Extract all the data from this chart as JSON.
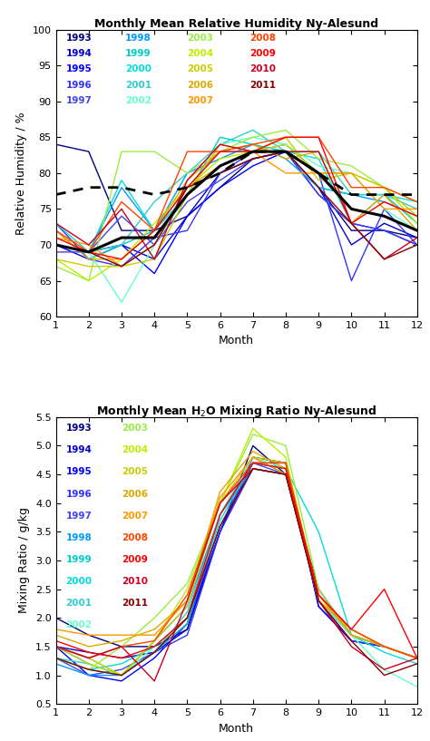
{
  "title1": "Monthly Mean Relative Humidity Ny-Alesund",
  "title2": "Monthly Mean H₂O Mixing Ratio Ny-Alesund",
  "xlabel": "Month",
  "ylabel1": "Relative Humidity / %",
  "ylabel2": "Mixing Ratio / g/kg",
  "months": [
    1,
    2,
    3,
    4,
    5,
    6,
    7,
    8,
    9,
    10,
    11,
    12
  ],
  "rh_ylim": [
    60,
    100
  ],
  "mr_ylim": [
    0.5,
    5.5
  ],
  "rh_yticks": [
    60,
    65,
    70,
    75,
    80,
    85,
    90,
    95,
    100
  ],
  "mr_yticks": [
    0.5,
    1.0,
    1.5,
    2.0,
    2.5,
    3.0,
    3.5,
    4.0,
    4.5,
    5.0,
    5.5
  ],
  "year_colors": {
    "1993": "#000080",
    "1994": "#0000CC",
    "1995": "#0000FF",
    "1996": "#3333FF",
    "1997": "#4444EE",
    "1998": "#0099FF",
    "1999": "#00CCCC",
    "2000": "#00DDDD",
    "2001": "#33CCCC",
    "2002": "#66FFCC",
    "2003": "#99EE44",
    "2004": "#BBEE00",
    "2005": "#CCCC00",
    "2006": "#DDAA00",
    "2007": "#FF9900",
    "2008": "#FF4400",
    "2009": "#FF0000",
    "2010": "#CC0022",
    "2011": "#880000"
  },
  "rh_data": {
    "1993": [
      84,
      83,
      72,
      72,
      74,
      78,
      82,
      83,
      78,
      72,
      72,
      71
    ],
    "1994": [
      70,
      69,
      70,
      68,
      74,
      80,
      82,
      83,
      78,
      70,
      73,
      71
    ],
    "1995": [
      70,
      68,
      70,
      66,
      74,
      78,
      81,
      83,
      77,
      73,
      72,
      70
    ],
    "1996": [
      73,
      68,
      67,
      71,
      72,
      80,
      83,
      84,
      80,
      65,
      75,
      70
    ],
    "1997": [
      69,
      69,
      74,
      70,
      76,
      79,
      82,
      83,
      77,
      73,
      72,
      70
    ],
    "1998": [
      70,
      69,
      78,
      72,
      80,
      82,
      84,
      82,
      78,
      77,
      76,
      74
    ],
    "1999": [
      72,
      68,
      70,
      72,
      77,
      85,
      84,
      83,
      78,
      77,
      77,
      73
    ],
    "2000": [
      73,
      69,
      79,
      72,
      78,
      83,
      83,
      83,
      82,
      73,
      77,
      76
    ],
    "2001": [
      70,
      69,
      70,
      76,
      80,
      84,
      86,
      83,
      83,
      77,
      77,
      75
    ],
    "2002": [
      70,
      69,
      62,
      70,
      77,
      84,
      85,
      84,
      81,
      80,
      75,
      72
    ],
    "2003": [
      67,
      65,
      83,
      83,
      80,
      83,
      85,
      86,
      82,
      81,
      78,
      76
    ],
    "2004": [
      68,
      65,
      68,
      73,
      78,
      82,
      83,
      84,
      80,
      80,
      78,
      73
    ],
    "2005": [
      68,
      67,
      67,
      68,
      77,
      84,
      83,
      85,
      79,
      80,
      78,
      74
    ],
    "2006": [
      72,
      68,
      68,
      72,
      79,
      83,
      84,
      82,
      83,
      73,
      77,
      72
    ],
    "2007": [
      71,
      70,
      67,
      70,
      78,
      81,
      83,
      80,
      80,
      80,
      75,
      75
    ],
    "2008": [
      72,
      69,
      76,
      72,
      83,
      83,
      84,
      85,
      85,
      78,
      78,
      76
    ],
    "2009": [
      71,
      69,
      68,
      72,
      78,
      83,
      83,
      85,
      85,
      73,
      76,
      74
    ],
    "2010": [
      73,
      70,
      75,
      68,
      79,
      84,
      83,
      83,
      83,
      73,
      68,
      71
    ],
    "2011": [
      70,
      69,
      67,
      70,
      78,
      80,
      82,
      83,
      78,
      73,
      68,
      70
    ]
  },
  "mr_data": {
    "1993": [
      2.0,
      1.7,
      1.5,
      1.5,
      1.8,
      3.5,
      5.0,
      4.5,
      2.5,
      1.7,
      1.5,
      1.3
    ],
    "1994": [
      1.5,
      1.4,
      1.3,
      1.4,
      1.8,
      3.5,
      4.8,
      4.7,
      2.2,
      1.6,
      1.5,
      1.3
    ],
    "1995": [
      1.5,
      1.0,
      0.9,
      1.3,
      1.9,
      3.5,
      4.7,
      4.7,
      2.2,
      1.6,
      1.5,
      1.3
    ],
    "1996": [
      1.5,
      1.2,
      1.0,
      1.4,
      1.7,
      3.5,
      4.6,
      4.5,
      2.3,
      1.6,
      1.5,
      1.3
    ],
    "1997": [
      1.3,
      1.0,
      1.1,
      1.4,
      1.9,
      3.6,
      4.7,
      4.5,
      2.3,
      1.7,
      1.5,
      1.3
    ],
    "1998": [
      1.2,
      1.0,
      1.0,
      1.6,
      2.2,
      3.8,
      4.6,
      4.5,
      2.3,
      1.8,
      1.5,
      1.3
    ],
    "1999": [
      1.3,
      1.1,
      1.0,
      1.4,
      1.9,
      3.8,
      4.7,
      4.6,
      2.3,
      1.7,
      1.5,
      1.3
    ],
    "2000": [
      1.3,
      1.1,
      1.2,
      1.5,
      2.0,
      3.7,
      4.7,
      4.6,
      3.5,
      1.7,
      1.4,
      1.2
    ],
    "2001": [
      1.3,
      1.2,
      1.0,
      1.4,
      2.1,
      3.8,
      4.8,
      4.5,
      2.3,
      1.7,
      1.5,
      1.3
    ],
    "2002": [
      1.5,
      1.3,
      1.0,
      1.5,
      2.0,
      3.8,
      4.8,
      4.6,
      2.3,
      1.7,
      1.1,
      0.8
    ],
    "2003": [
      1.3,
      1.1,
      1.5,
      2.0,
      2.6,
      4.0,
      5.2,
      5.0,
      2.5,
      1.7,
      1.5,
      1.3
    ],
    "2004": [
      1.5,
      1.2,
      1.0,
      1.6,
      2.5,
      4.0,
      5.3,
      4.8,
      2.3,
      1.8,
      1.5,
      1.3
    ],
    "2005": [
      1.5,
      1.3,
      1.0,
      1.6,
      2.2,
      4.0,
      4.8,
      4.7,
      2.4,
      1.7,
      1.5,
      1.3
    ],
    "2006": [
      1.7,
      1.5,
      1.6,
      1.8,
      2.3,
      4.2,
      4.9,
      4.6,
      2.4,
      1.7,
      1.5,
      1.3
    ],
    "2007": [
      1.8,
      1.7,
      1.7,
      1.7,
      2.3,
      4.1,
      4.8,
      4.5,
      2.3,
      1.8,
      1.5,
      1.3
    ],
    "2008": [
      1.5,
      1.3,
      1.5,
      1.6,
      2.4,
      4.0,
      4.7,
      4.7,
      2.4,
      1.8,
      1.5,
      1.3
    ],
    "2009": [
      1.6,
      1.4,
      1.3,
      1.5,
      2.0,
      3.8,
      4.7,
      4.6,
      2.4,
      1.8,
      2.5,
      1.3
    ],
    "2010": [
      1.5,
      1.3,
      1.5,
      0.9,
      2.3,
      4.0,
      4.6,
      4.5,
      2.3,
      1.5,
      1.1,
      1.3
    ],
    "2011": [
      1.3,
      1.1,
      1.0,
      1.4,
      2.0,
      3.6,
      4.6,
      4.5,
      2.3,
      1.6,
      1.0,
      1.2
    ]
  },
  "rh_mean": [
    70,
    69,
    71,
    71,
    77,
    81,
    83,
    83,
    80,
    75,
    74,
    72
  ],
  "rh_median": [
    77,
    78,
    78,
    77,
    78,
    80,
    83,
    83,
    80,
    77,
    77,
    77
  ],
  "legend1_cols": [
    [
      [
        "1993",
        "#000080"
      ],
      [
        "1994",
        "#0000CC"
      ],
      [
        "1995",
        "#0000FF"
      ],
      [
        "1996",
        "#3333FF"
      ],
      [
        "1997",
        "#4444EE"
      ]
    ],
    [
      [
        "1998",
        "#0099FF"
      ],
      [
        "1999",
        "#00CCCC"
      ],
      [
        "2000",
        "#00DDDD"
      ],
      [
        "2001",
        "#33CCCC"
      ],
      [
        "2002",
        "#66FFCC"
      ]
    ],
    [
      [
        "2003",
        "#99EE44"
      ],
      [
        "2004",
        "#BBEE00"
      ],
      [
        "2005",
        "#CCCC00"
      ],
      [
        "2006",
        "#DDAA00"
      ],
      [
        "2007",
        "#FF9900"
      ]
    ],
    [
      [
        "2008",
        "#FF4400"
      ],
      [
        "2009",
        "#FF0000"
      ],
      [
        "2010",
        "#CC0022"
      ],
      [
        "2011",
        "#880000"
      ]
    ]
  ],
  "legend2_cols": [
    [
      [
        "1993",
        "#000080"
      ],
      [
        "1994",
        "#0000CC"
      ],
      [
        "1995",
        "#0000FF"
      ],
      [
        "1996",
        "#3333FF"
      ],
      [
        "1997",
        "#4444EE"
      ],
      [
        "1998",
        "#0099FF"
      ],
      [
        "1999",
        "#00CCCC"
      ],
      [
        "2000",
        "#00DDDD"
      ],
      [
        "2001",
        "#33CCCC"
      ],
      [
        "2002",
        "#66FFCC"
      ]
    ],
    [
      [
        "2003",
        "#99EE44"
      ],
      [
        "2004",
        "#BBEE00"
      ],
      [
        "2005",
        "#CCCC00"
      ],
      [
        "2006",
        "#DDAA00"
      ],
      [
        "2007",
        "#FF9900"
      ],
      [
        "2008",
        "#FF4400"
      ],
      [
        "2009",
        "#FF0000"
      ],
      [
        "2010",
        "#CC0022"
      ],
      [
        "2011",
        "#880000"
      ]
    ]
  ]
}
